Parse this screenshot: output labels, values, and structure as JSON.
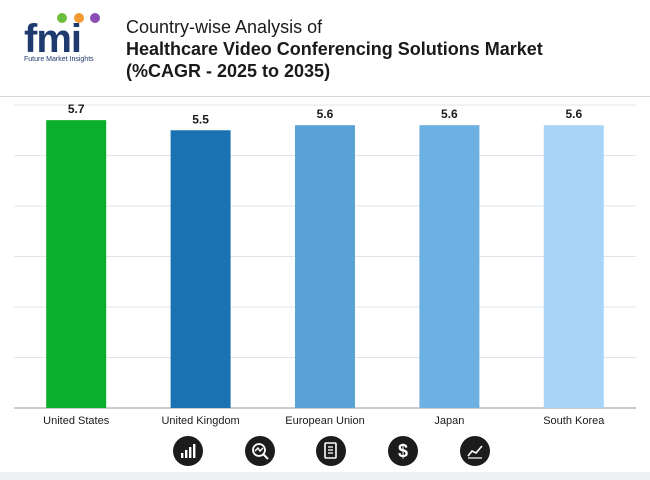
{
  "header": {
    "brand": "fmi",
    "brand_sub": "Future Market Insights",
    "title_line1": "Country-wise Analysis of",
    "title_line2": "Healthcare Video Conferencing Solutions Market",
    "title_line3": "(%CAGR - 2025 to 2035)"
  },
  "chart_data": {
    "type": "bar",
    "title": "Country-wise Analysis of Healthcare Video Conferencing Solutions Market (%CAGR - 2025 to 2035)",
    "categories": [
      "United States",
      "United Kingdom",
      "European Union",
      "Japan",
      "South Korea"
    ],
    "values": [
      5.7,
      5.5,
      5.6,
      5.6,
      5.6
    ],
    "colors": [
      "#0aaf2d",
      "#1a72b3",
      "#5aa2d6",
      "#6db1e3",
      "#a8d4f5"
    ],
    "data_labels": [
      "5.7",
      "5.5",
      "5.6",
      "5.6",
      "5.6"
    ],
    "xlabel": "",
    "ylabel": "",
    "ylim": [
      0,
      6
    ],
    "grid": true
  },
  "footer": {
    "icons": [
      "bar-chart-icon",
      "magnifier-trend-icon",
      "document-icon",
      "dollar-icon",
      "line-trend-icon"
    ]
  }
}
